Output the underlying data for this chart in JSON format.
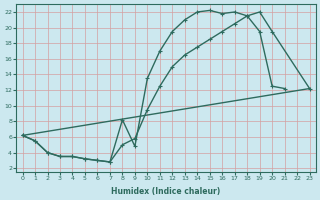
{
  "xlabel": "Humidex (Indice chaleur)",
  "bg_color": "#cce8ef",
  "grid_color": "#b0d4dc",
  "line_color": "#2e6b5e",
  "xlim": [
    -0.5,
    23.5
  ],
  "ylim": [
    1.5,
    23.0
  ],
  "xticks": [
    0,
    1,
    2,
    3,
    4,
    5,
    6,
    7,
    8,
    9,
    10,
    11,
    12,
    13,
    14,
    15,
    16,
    17,
    18,
    19,
    20,
    21,
    22,
    23
  ],
  "yticks": [
    2,
    4,
    6,
    8,
    10,
    12,
    14,
    16,
    18,
    20,
    22
  ],
  "curve1_x": [
    0,
    1,
    2,
    3,
    4,
    5,
    6,
    7,
    8,
    9,
    10,
    11,
    12,
    13,
    14,
    15,
    16,
    17,
    18,
    19,
    20,
    21
  ],
  "curve1_y": [
    6.2,
    5.5,
    4.0,
    3.5,
    3.5,
    3.2,
    3.0,
    2.8,
    8.2,
    4.8,
    13.5,
    17.0,
    19.5,
    21.0,
    22.0,
    22.2,
    21.8,
    22.0,
    21.5,
    19.5,
    12.5,
    12.2
  ],
  "curve2_x": [
    0,
    1,
    2,
    3,
    4,
    5,
    6,
    7,
    8,
    9,
    10,
    11,
    12,
    13,
    14,
    15,
    16,
    17,
    18,
    19,
    20,
    23
  ],
  "curve2_y": [
    6.2,
    5.5,
    4.0,
    3.5,
    3.5,
    3.2,
    3.0,
    2.8,
    5.0,
    5.8,
    9.5,
    12.5,
    15.0,
    16.5,
    17.5,
    18.5,
    19.5,
    20.5,
    21.5,
    22.0,
    19.5,
    12.2
  ],
  "curve3_x": [
    0,
    23
  ],
  "curve3_y": [
    6.2,
    12.2
  ],
  "marker": "+",
  "markersize": 3.5,
  "linewidth": 1.0
}
